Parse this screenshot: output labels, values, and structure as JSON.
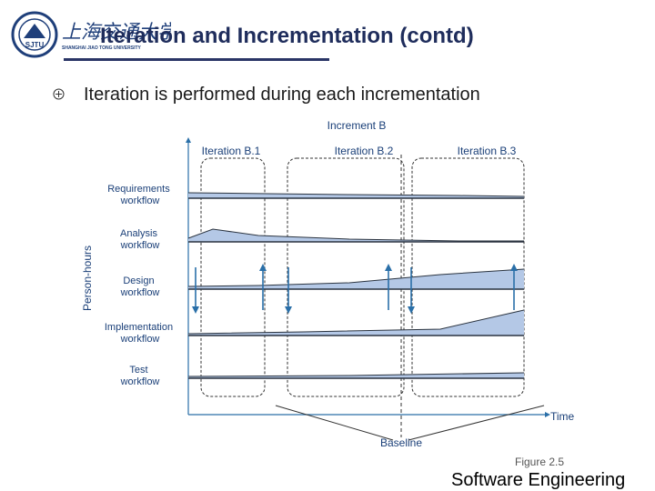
{
  "header": {
    "logo_text": "上海交通大学",
    "logo_subtext": "SHANGHAI JIAO TONG UNIVERSITY",
    "seal_text": "SJTU",
    "title": "Iteration and Incrementation (contd)"
  },
  "bullet": {
    "text": "Iteration is performed during each incrementation"
  },
  "diagram": {
    "increment_label": "Increment B",
    "iterations": [
      "Iteration B.1",
      "Iteration B.2",
      "Iteration B.3"
    ],
    "workflows": [
      [
        "Requirements",
        "workflow"
      ],
      [
        "Analysis",
        "workflow"
      ],
      [
        "Design",
        "workflow"
      ],
      [
        "Implementation",
        "workflow"
      ],
      [
        "Test",
        "workflow"
      ]
    ],
    "y_axis_label": "Person-hours",
    "x_axis_label": "Time",
    "baseline_label": "Baseline",
    "colors": {
      "fill": "#b4c8e6",
      "line": "#2b3440",
      "arrow": "#2a6fa8",
      "text": "#1a3f78"
    }
  },
  "footer": {
    "figure_label": "Figure 2.5",
    "course_label": "Software Engineering"
  }
}
